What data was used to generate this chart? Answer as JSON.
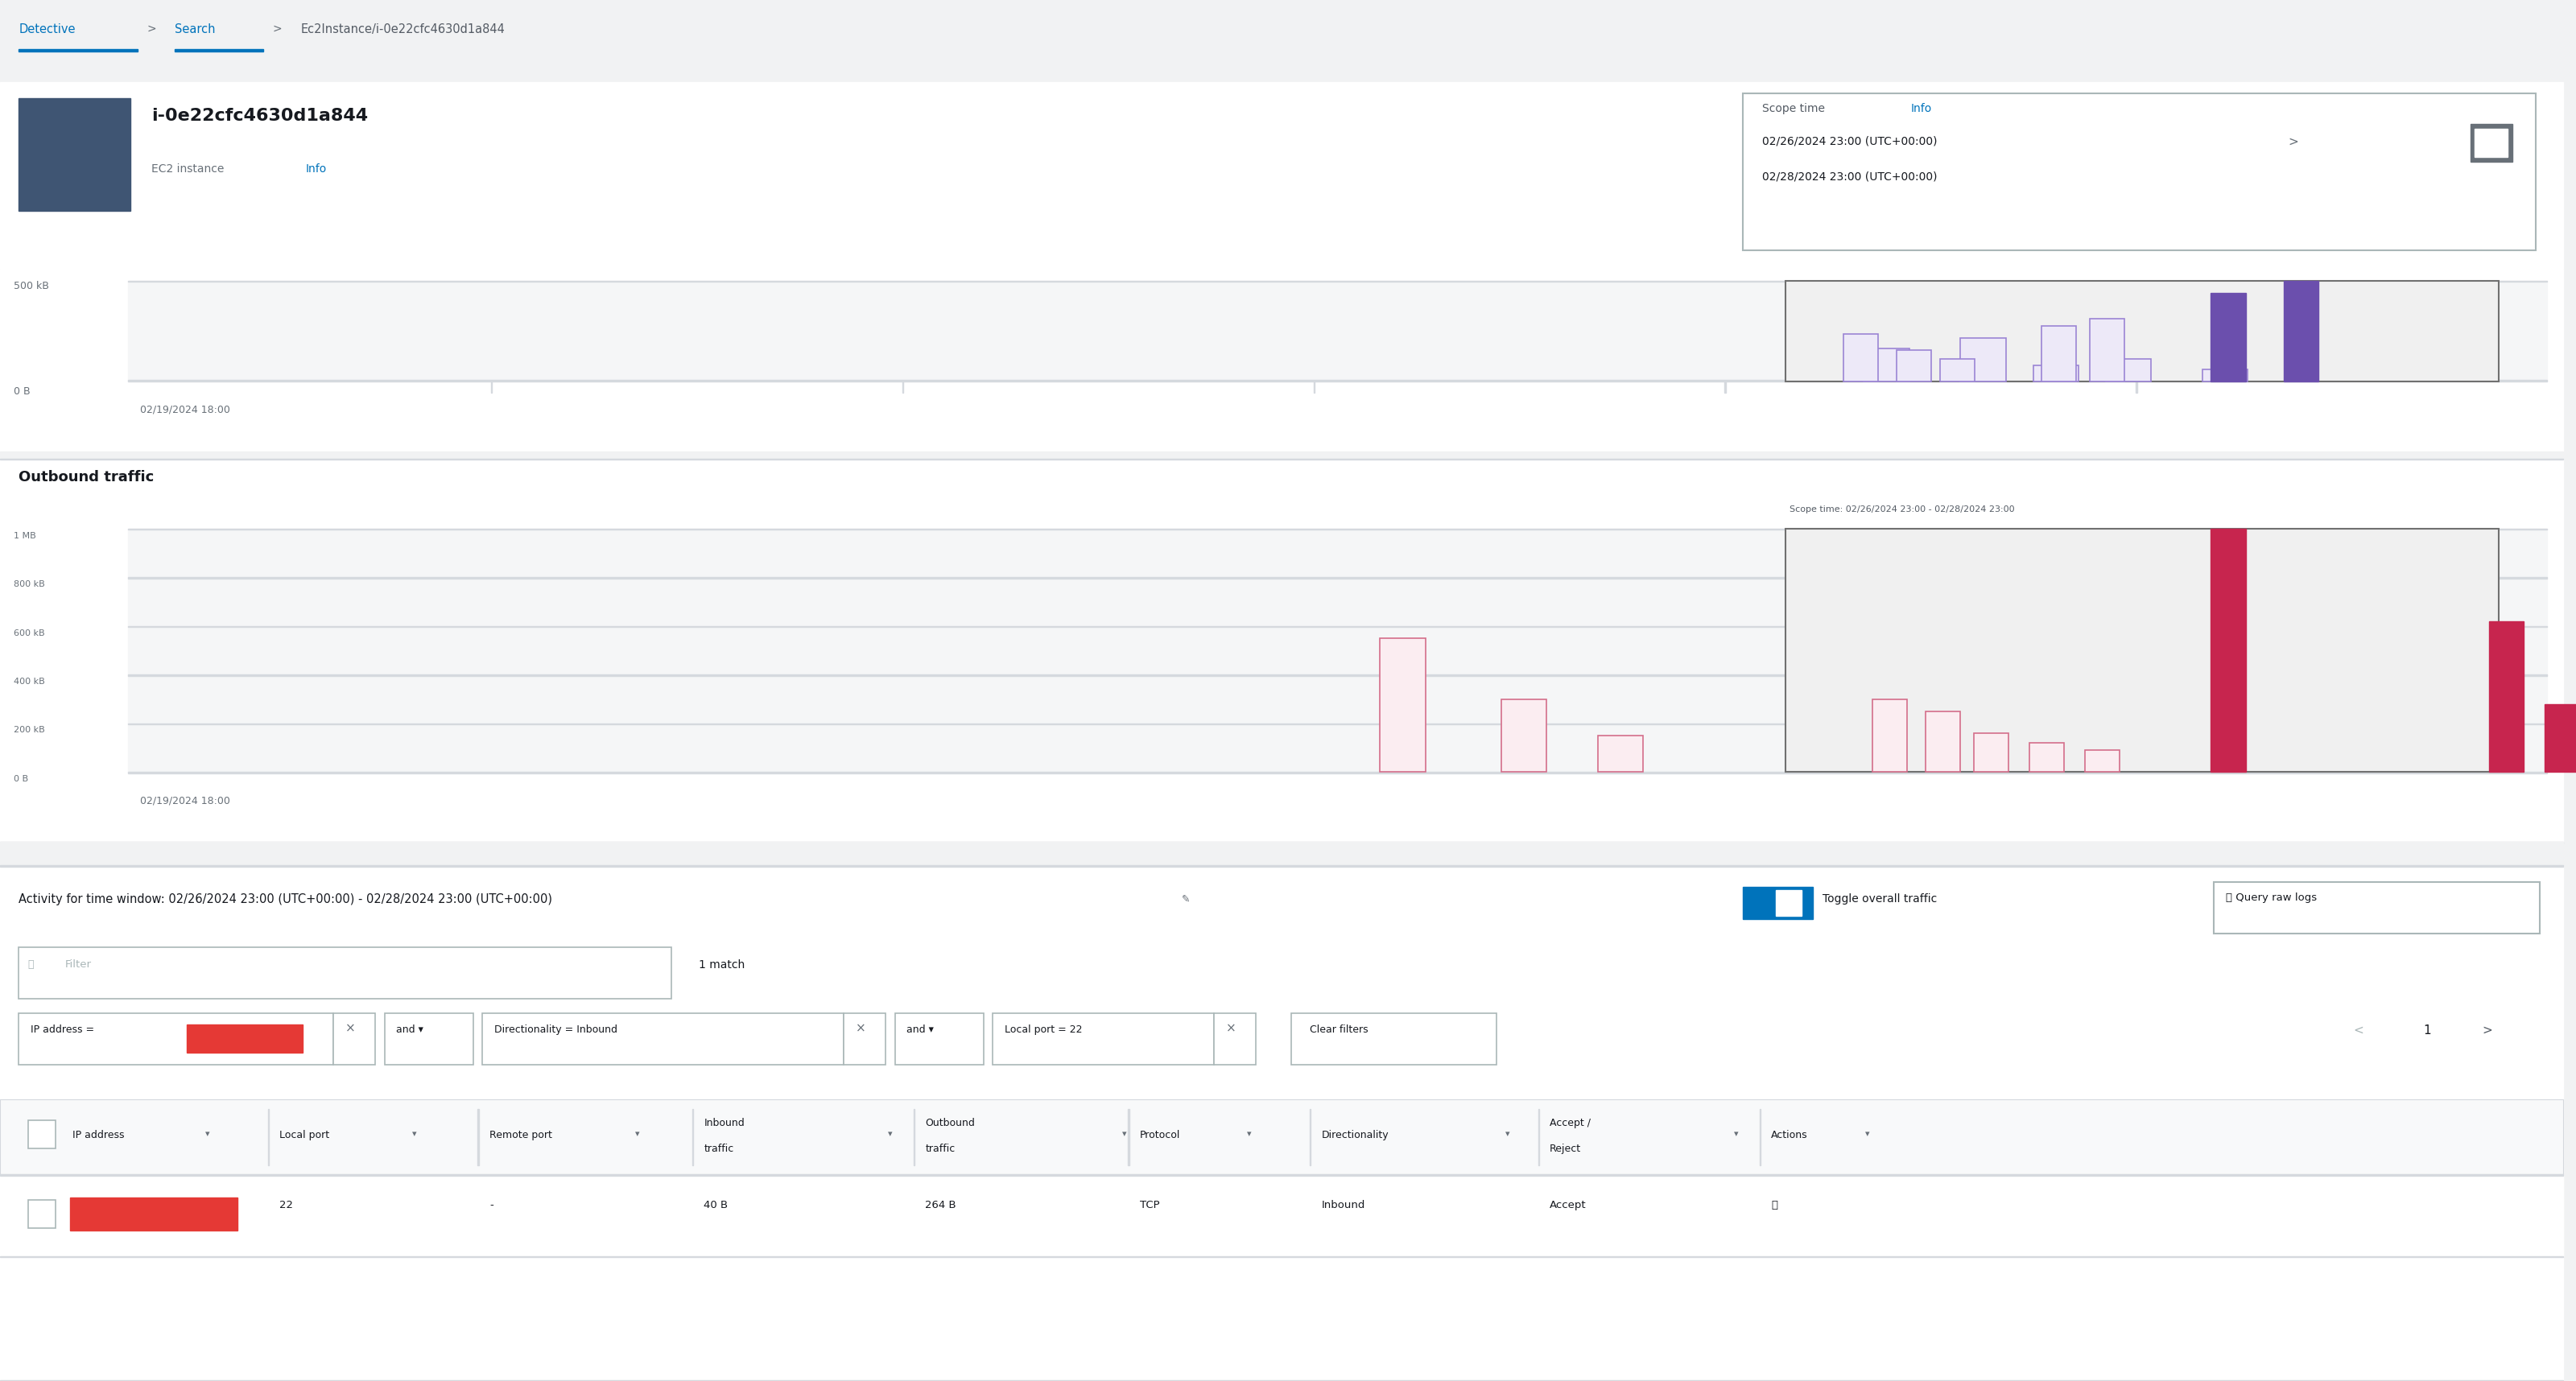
{
  "bg_color": "#f1f2f3",
  "white": "#ffffff",
  "instance_id": "i-0e22cfc4630d1a844",
  "scope_date1": "02/26/2024 23:00 (UTC+00:00)",
  "scope_date2": "02/28/2024 23:00 (UTC+00:00)",
  "inbound_x_label": "02/19/2024 18:00",
  "outbound_section_label": "Outbound traffic",
  "outbound_scope_annotation": "Scope time: 02/26/2024 23:00 - 02/28/2024 23:00",
  "outbound_x_label": "02/19/2024 18:00",
  "activity_label": "Activity for time window: 02/26/2024 23:00 (UTC+00:00) - 02/28/2024 23:00 (UTC+00:00)",
  "toggle_label": "Toggle overall traffic",
  "query_btn": "  Query raw logs",
  "filter_placeholder": "Filter",
  "match_text": "1 match",
  "clear_filters": "Clear filters",
  "table_headers": [
    "IP address",
    "Local port",
    "Remote port",
    "Inbound\ntraffic",
    "Outbound\ntraffic",
    "Protocol",
    "Directionality",
    "Accept /\nReject",
    "Actions"
  ],
  "page_info": "1",
  "link_color": "#0073bb",
  "bar_purple_filled": "#6b4fad",
  "bar_purple_outline": "#9b85d4",
  "bar_purple_fill_light": "#ede9f8",
  "bar_pink_filled": "#c7254e",
  "bar_pink_outline": "#d46e8a",
  "bar_pink_fill_light": "#fbedf1",
  "header_gray": "#687078",
  "divider_color": "#d5d9de",
  "icon_bg": "#3f5573",
  "blue_toggle": "#0073bb",
  "red_bar_color": "#e53935",
  "scope_box_bg": "#f8f8f8",
  "text_dark": "#16191f",
  "text_mid": "#545b64",
  "text_light": "#687078"
}
